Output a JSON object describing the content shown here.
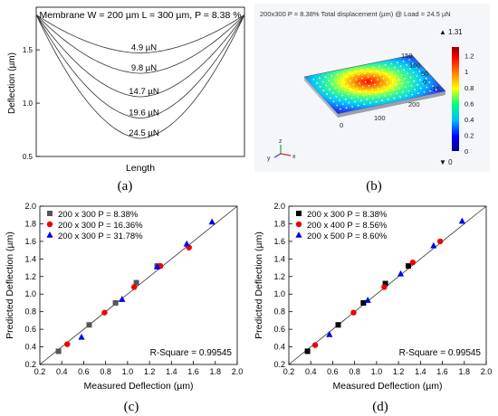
{
  "panels": {
    "a": "(a)",
    "b": "(b)",
    "c": "(c)",
    "d": "(d)"
  },
  "chart_data": [
    {
      "type": "line",
      "id": "a",
      "title": "Membrane W = 200 µm L = 300 µm, P = 8.38 %",
      "xlabel": "Length",
      "ylabel": "Deflection (µm)",
      "ylim": [
        0.5,
        1.9
      ],
      "yticks": [
        0.5,
        1.0,
        1.5
      ],
      "series": [
        {
          "name": "4.9 µN",
          "min": 1.47
        },
        {
          "name": "9.8 µN",
          "min": 1.28
        },
        {
          "name": "14.7 µN",
          "min": 1.06
        },
        {
          "name": "19.6 µN",
          "min": 0.86
        },
        {
          "name": "24.5 µN",
          "min": 0.67
        }
      ]
    },
    {
      "type": "heatmap",
      "id": "b",
      "title": "200x300 P = 8.38% Total displacement (µm) @ Load = 24.5 µN",
      "colorbar_max": "▲ 1.31",
      "colorbar_min": "▼ 0",
      "colorbar_ticks": [
        "1.2",
        "1",
        "0.8",
        "0.6",
        "0.4",
        "0.2",
        "0"
      ],
      "axis_ticks": [
        "150",
        "100",
        "50",
        "0",
        "-15",
        "200",
        "100",
        "0"
      ],
      "axis_letters": [
        "y",
        "z",
        "x"
      ],
      "colors": [
        "#00008b",
        "#0000ff",
        "#00bfff",
        "#00ff80",
        "#ffff00",
        "#ff8000",
        "#ff0000",
        "#8b0000"
      ]
    },
    {
      "type": "scatter",
      "id": "c",
      "xlabel": "Measured Deflection (µm)",
      "ylabel": "Predicted Deflection (µm)",
      "xlim": [
        0.2,
        2.0
      ],
      "ylim": [
        0.2,
        2.0
      ],
      "xticks": [
        "0.2",
        "0.4",
        "0.6",
        "0.8",
        "1.0",
        "1.2",
        "1.4",
        "1.6",
        "1.8",
        "2.0"
      ],
      "yticks": [
        "0.2",
        "0.4",
        "0.6",
        "0.8",
        "1.0",
        "1.2",
        "1.4",
        "1.6",
        "1.8",
        "2.0"
      ],
      "annotation": "R-Square = 0.99545",
      "series": [
        {
          "name": "200 x 300 P = 8.38%",
          "marker": "square",
          "color": "#555555",
          "x": [
            0.37,
            0.65,
            0.89,
            1.08,
            1.27
          ],
          "y": [
            0.35,
            0.65,
            0.9,
            1.13,
            1.32
          ]
        },
        {
          "name": "200 x 300 P = 16.36%",
          "marker": "circle",
          "color": "#ee0000",
          "x": [
            0.45,
            0.79,
            1.06,
            1.3,
            1.56
          ],
          "y": [
            0.43,
            0.79,
            1.08,
            1.32,
            1.53
          ]
        },
        {
          "name": "200 x 300 P = 31.78%",
          "marker": "triangle",
          "color": "#0000ee",
          "x": [
            0.58,
            0.95,
            1.27,
            1.54,
            1.77
          ],
          "y": [
            0.51,
            0.94,
            1.31,
            1.57,
            1.82
          ]
        }
      ]
    },
    {
      "type": "scatter",
      "id": "d",
      "xlabel": "Measured Deflection (µm)",
      "ylabel": "Predicted Deflection (µm)",
      "xlim": [
        0.2,
        2.0
      ],
      "ylim": [
        0.2,
        2.0
      ],
      "xticks": [
        "0.2",
        "0.4",
        "0.6",
        "0.8",
        "1.0",
        "1.2",
        "1.4",
        "1.6",
        "1.8",
        "2.0"
      ],
      "yticks": [
        "0.2",
        "0.4",
        "0.6",
        "0.8",
        "1.0",
        "1.2",
        "1.4",
        "1.6",
        "1.8",
        "2.0"
      ],
      "annotation": "R-Square = 0.99545",
      "series": [
        {
          "name": "200 x 300 P = 8.38%",
          "marker": "square",
          "color": "#000000",
          "x": [
            0.37,
            0.65,
            0.88,
            1.08,
            1.29
          ],
          "y": [
            0.35,
            0.65,
            0.9,
            1.12,
            1.32
          ]
        },
        {
          "name": "200 x 400 P = 8.56%",
          "marker": "circle",
          "color": "#ee0000",
          "x": [
            0.44,
            0.79,
            1.07,
            1.33,
            1.58
          ],
          "y": [
            0.42,
            0.79,
            1.08,
            1.36,
            1.6
          ]
        },
        {
          "name": "200 x 500 P = 8.60%",
          "marker": "triangle",
          "color": "#0000ee",
          "x": [
            0.57,
            0.92,
            1.22,
            1.52,
            1.78
          ],
          "y": [
            0.54,
            0.93,
            1.23,
            1.55,
            1.83
          ]
        }
      ]
    }
  ]
}
